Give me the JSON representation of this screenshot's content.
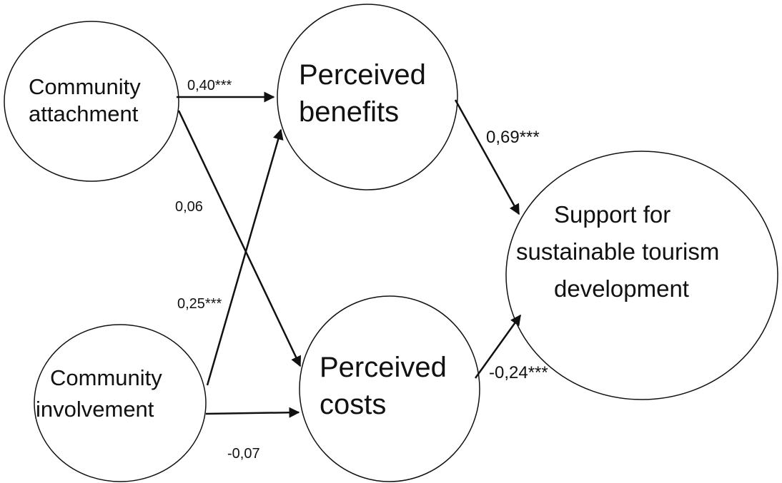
{
  "nodes": [
    {
      "lines": [
        "Community",
        "attachment"
      ]
    },
    {
      "lines": [
        "Perceived",
        "benefits"
      ]
    },
    {
      "lines": [
        "Support for",
        "sustainable tourism",
        "development"
      ]
    },
    {
      "lines": [
        "Perceived",
        "costs"
      ]
    },
    {
      "lines": [
        "Community",
        "involvement"
      ]
    }
  ],
  "edges": [
    {
      "label": "0,40***"
    },
    {
      "label": "0,06"
    },
    {
      "label": "0,25***"
    },
    {
      "label": "-0,07"
    },
    {
      "label": "0,69***"
    },
    {
      "label": "-0,24***"
    }
  ]
}
